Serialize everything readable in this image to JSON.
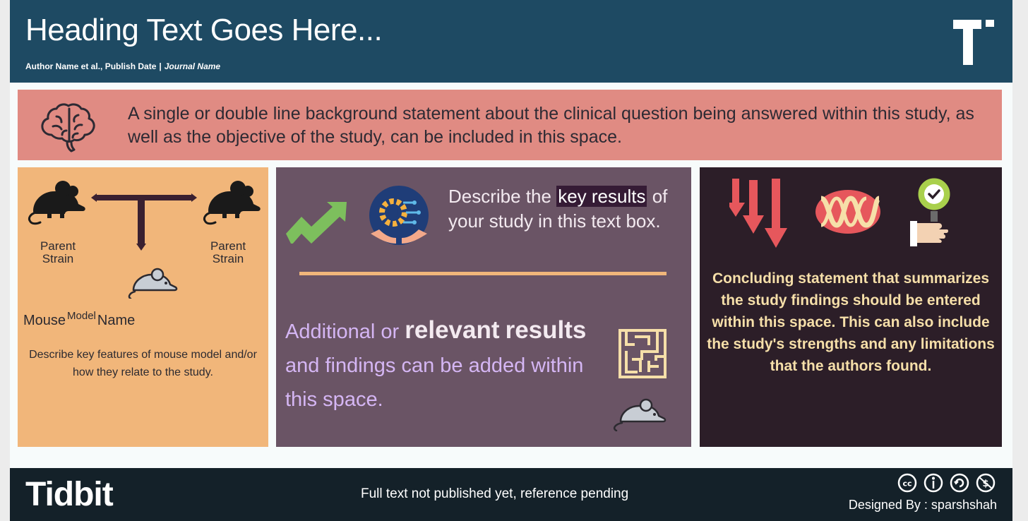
{
  "header": {
    "title": "Heading Text Goes Here...",
    "authors": "Author Name et al., Publish Date",
    "separator": "|",
    "journal": "Journal Name",
    "logo_icon": "tidbit-t-logo-icon"
  },
  "background": {
    "icon": "brain-icon",
    "text": "A single or double line background statement about the clinical question being answered within this study, as well as the objective of the study, can be included in this space."
  },
  "model_panel": {
    "left_strain_label": "Parent Strain",
    "right_strain_label": "Parent Strain",
    "model_name_prefix": "Mouse",
    "model_name_sup": "Model",
    "model_name_suffix": "Name",
    "description": "Describe key features of mouse model and/or how they relate to the study.",
    "icons": [
      "black-mouse-icon",
      "cross-breeding-arrow-icon",
      "grey-mouse-icon"
    ]
  },
  "results_panel": {
    "key_prefix": "Describe the",
    "key_highlight": "key results",
    "key_suffix": "of your study in this text box.",
    "additional_1": "Additional or",
    "additional_bold_1": "relevant",
    "additional_bold_2": "results",
    "additional_2": "and findings can be added within this space.",
    "icons": [
      "trend-up-arrow-icon",
      "hands-gear-globe-icon",
      "maze-icon",
      "grey-mouse-icon"
    ]
  },
  "conclusion_panel": {
    "text": "Concluding statement that summarizes the study findings should be entered within this space. This can also include the study's strengths and any limitations that the authors found.",
    "icons": [
      "down-arrows-icon",
      "dna-helix-icon",
      "approval-magnifier-icon"
    ]
  },
  "footer": {
    "brand": "Tidbit",
    "note": "Full text not published yet, reference pending",
    "designed_by": "Designed By : sparshshah",
    "license_icons": [
      "cc-icon",
      "attribution-icon",
      "share-alike-icon",
      "non-commercial-icon"
    ]
  },
  "colors": {
    "header": "#1e4a63",
    "background_box": "#e08b83",
    "model_panel": "#f1b67a",
    "results_panel": "#6a5465",
    "conclusion_panel": "#2c1e28",
    "footer": "#142129",
    "highlight": "#351b35",
    "conclusion_text": "#f6dfa9",
    "additional_text": "#d5b6f4"
  }
}
